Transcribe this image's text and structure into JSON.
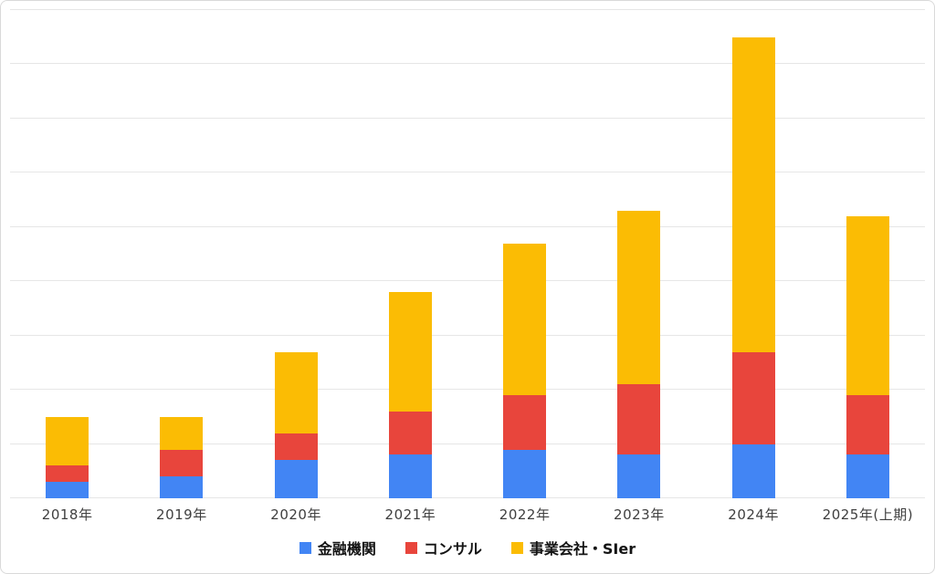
{
  "chart_data": {
    "type": "bar",
    "stacked": true,
    "title": "",
    "xlabel": "",
    "ylabel": "",
    "categories": [
      "2018年",
      "2019年",
      "2020年",
      "2021年",
      "2022年",
      "2023年",
      "2024年",
      "2025年(上期)"
    ],
    "series": [
      {
        "name": "金融機関",
        "color": "#4285F4",
        "values": [
          3,
          4,
          7,
          8,
          9,
          8,
          10,
          8
        ]
      },
      {
        "name": "コンサル",
        "color": "#E8453C",
        "values": [
          3,
          5,
          5,
          8,
          10,
          13,
          17,
          11
        ]
      },
      {
        "name": "事業会社・SIer",
        "color": "#FBBC04",
        "values": [
          9,
          6,
          15,
          22,
          28,
          32,
          58,
          33
        ]
      }
    ],
    "totals": [
      15,
      15,
      27,
      38,
      47,
      53,
      85,
      52
    ],
    "ylim": [
      0,
      90
    ],
    "gridline_interval": 10,
    "grid": true,
    "legend_position": "bottom",
    "y_axis_labels_visible": false
  },
  "colors": {
    "background": "#ffffff",
    "border": "#d9d9d9",
    "gridline": "#e6e6e6",
    "axis_text": "#3f3f3f",
    "legend_text": "#141414"
  }
}
